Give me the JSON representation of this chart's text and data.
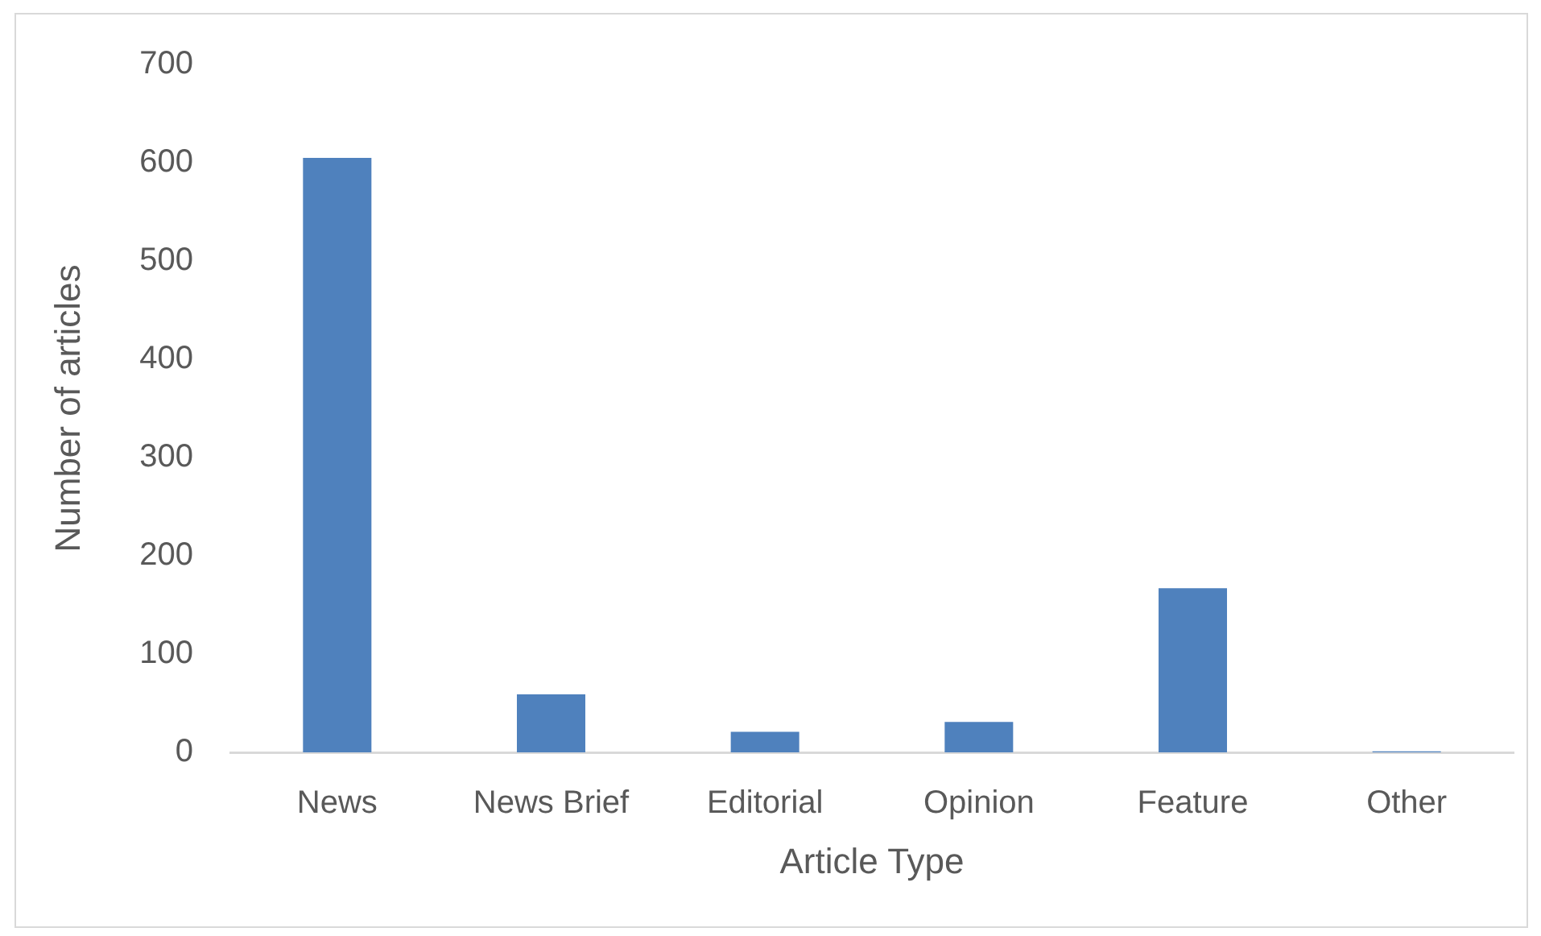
{
  "chart_data": {
    "type": "bar",
    "xlabel": "Article Type",
    "ylabel": "Number of articles",
    "categories": [
      "News",
      "News Brief",
      "Editorial",
      "Opinion",
      "Feature",
      "Other"
    ],
    "values": [
      605,
      59,
      21,
      31,
      167,
      1
    ],
    "color": "#4f81bd",
    "ylim": [
      0,
      700
    ],
    "yticks": [
      0,
      100,
      200,
      300,
      400,
      500,
      600,
      700
    ],
    "grid": false,
    "legend": false
  }
}
